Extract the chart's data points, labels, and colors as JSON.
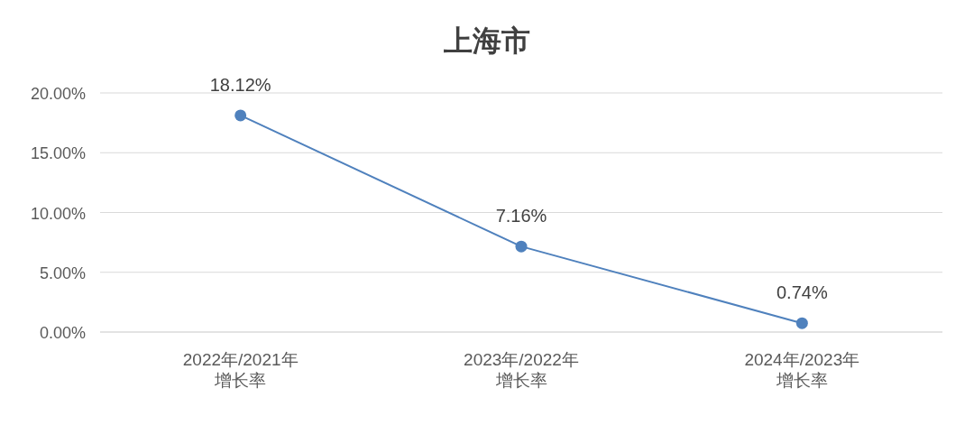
{
  "chart_data": {
    "type": "line",
    "title": "上海市",
    "categories": [
      "2022年/2021年增长率",
      "2023年/2022年增长率",
      "2024年/2023年增长率"
    ],
    "series": [
      {
        "color": "#4f81bd",
        "values": [
          18.12,
          7.16,
          0.74
        ],
        "value_labels": [
          "18.12%",
          "7.16%",
          "0.74%"
        ]
      }
    ],
    "ylim": [
      0,
      20
    ],
    "yticks": [
      {
        "value": 0,
        "label": "0.00%"
      },
      {
        "value": 5,
        "label": "5.00%"
      },
      {
        "value": 10,
        "label": "10.00%"
      },
      {
        "value": 15,
        "label": "15.00%"
      },
      {
        "value": 20,
        "label": "20.00%"
      }
    ],
    "grid": "y",
    "marker": "circle",
    "line_style": "solid"
  }
}
